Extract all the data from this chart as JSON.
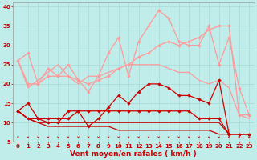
{
  "background_color": "#c0ece9",
  "grid_color": "#aadddd",
  "xlabel": "Vent moyen/en rafales ( km/h )",
  "xlabel_color": "#cc0000",
  "xlim": [
    -0.5,
    23.5
  ],
  "ylim": [
    5,
    41
  ],
  "yticks": [
    5,
    10,
    15,
    20,
    25,
    30,
    35,
    40
  ],
  "xticks": [
    0,
    1,
    2,
    3,
    4,
    5,
    6,
    7,
    8,
    9,
    10,
    11,
    12,
    13,
    14,
    15,
    16,
    17,
    18,
    19,
    20,
    21,
    22,
    23
  ],
  "series": [
    {
      "x": [
        0,
        1,
        2,
        3,
        4,
        5,
        6,
        7,
        8,
        9,
        10,
        11,
        12,
        13,
        14,
        15,
        16,
        17,
        18,
        19,
        20,
        21,
        22,
        23
      ],
      "y": [
        26,
        28,
        20,
        22,
        22,
        25,
        21,
        18,
        22,
        28,
        32,
        22,
        31,
        35,
        39,
        37,
        31,
        30,
        30,
        35,
        25,
        32,
        19,
        12
      ],
      "color": "#ff9999",
      "lw": 0.9,
      "marker": "D",
      "ms": 1.8
    },
    {
      "x": [
        0,
        1,
        2,
        3,
        4,
        5,
        6,
        7,
        8,
        9,
        10,
        11,
        12,
        13,
        14,
        15,
        16,
        17,
        18,
        19,
        20,
        21,
        22,
        23
      ],
      "y": [
        26,
        20,
        20,
        24,
        22,
        22,
        21,
        20,
        21,
        22,
        24,
        25,
        27,
        28,
        30,
        31,
        30,
        31,
        32,
        34,
        35,
        35,
        12,
        12
      ],
      "color": "#ff9999",
      "lw": 0.9,
      "marker": "D",
      "ms": 1.8
    },
    {
      "x": [
        0,
        1,
        2,
        3,
        4,
        5,
        6,
        7,
        8,
        9,
        10,
        11,
        12,
        13,
        14,
        15,
        16,
        17,
        18,
        19,
        20,
        21,
        22,
        23
      ],
      "y": [
        26,
        19,
        21,
        23,
        25,
        22,
        20,
        22,
        22,
        23,
        24,
        25,
        25,
        25,
        25,
        24,
        23,
        23,
        21,
        20,
        21,
        19,
        12,
        11
      ],
      "color": "#ff9999",
      "lw": 0.9,
      "marker": null,
      "ms": 0
    },
    {
      "x": [
        0,
        1,
        2,
        3,
        4,
        5,
        6,
        7,
        8,
        9,
        10,
        11,
        12,
        13,
        14,
        15,
        16,
        17,
        18,
        19,
        20,
        21,
        22,
        23
      ],
      "y": [
        13,
        15,
        11,
        10,
        10,
        13,
        13,
        9,
        11,
        14,
        17,
        15,
        18,
        20,
        20,
        19,
        17,
        17,
        16,
        15,
        21,
        7,
        7,
        7
      ],
      "color": "#cc0000",
      "lw": 0.9,
      "marker": "D",
      "ms": 1.8
    },
    {
      "x": [
        0,
        1,
        2,
        3,
        4,
        5,
        6,
        7,
        8,
        9,
        10,
        11,
        12,
        13,
        14,
        15,
        16,
        17,
        18,
        19,
        20,
        21,
        22,
        23
      ],
      "y": [
        13,
        11,
        11,
        11,
        11,
        11,
        13,
        13,
        13,
        13,
        13,
        13,
        13,
        13,
        13,
        13,
        13,
        13,
        11,
        11,
        11,
        7,
        7,
        7
      ],
      "color": "#cc0000",
      "lw": 0.9,
      "marker": "D",
      "ms": 1.8
    },
    {
      "x": [
        0,
        1,
        2,
        3,
        4,
        5,
        6,
        7,
        8,
        9,
        10,
        11,
        12,
        13,
        14,
        15,
        16,
        17,
        18,
        19,
        20,
        21,
        22,
        23
      ],
      "y": [
        13,
        11,
        10,
        10,
        10,
        10,
        10,
        10,
        10,
        10,
        10,
        10,
        10,
        10,
        10,
        10,
        10,
        10,
        10,
        10,
        10,
        7,
        7,
        7
      ],
      "color": "#cc0000",
      "lw": 0.9,
      "marker": null,
      "ms": 0
    },
    {
      "x": [
        0,
        1,
        2,
        3,
        4,
        5,
        6,
        7,
        8,
        9,
        10,
        11,
        12,
        13,
        14,
        15,
        16,
        17,
        18,
        19,
        20,
        21,
        22,
        23
      ],
      "y": [
        13,
        11,
        10,
        9,
        9,
        9,
        9,
        9,
        9,
        9,
        8,
        8,
        8,
        8,
        8,
        8,
        8,
        8,
        8,
        8,
        7,
        7,
        7,
        7
      ],
      "color": "#cc0000",
      "lw": 0.9,
      "marker": null,
      "ms": 0
    }
  ],
  "arrow_color": "#cc0000",
  "tick_color": "#cc0000",
  "tick_fontsize": 5,
  "xlabel_fontsize": 6.5,
  "spine_color": "#999999"
}
